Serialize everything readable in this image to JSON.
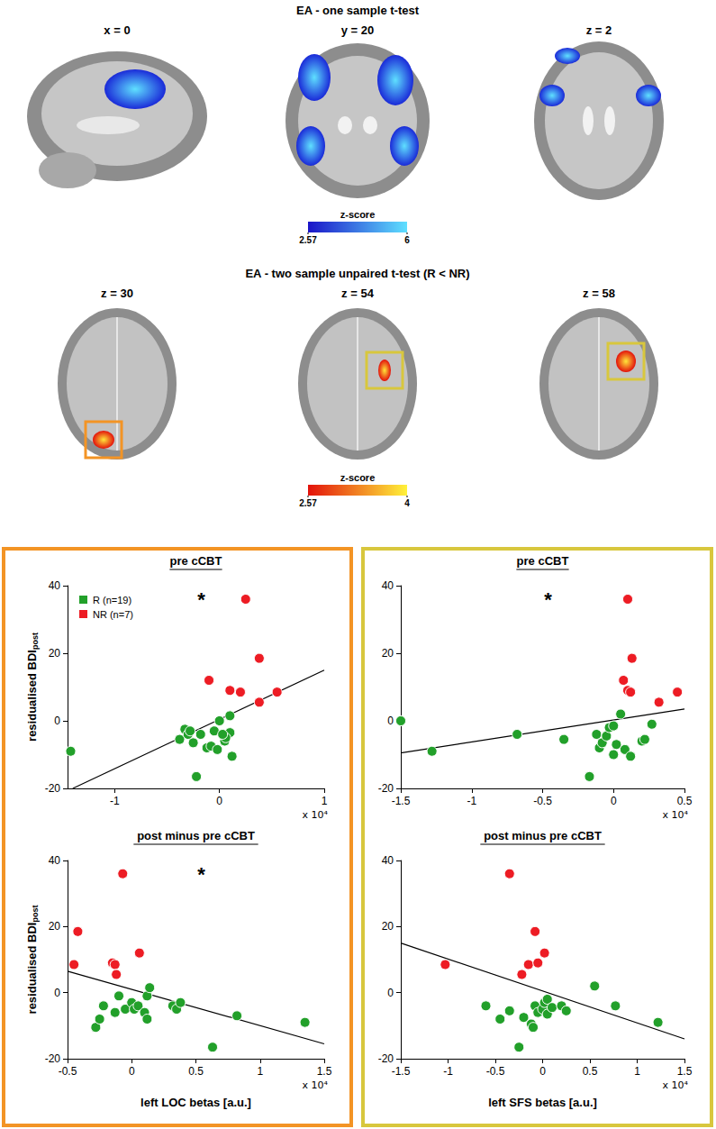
{
  "panels": [
    {
      "title": "EA - one sample t-test",
      "slices": [
        "x = 0",
        "y = 20",
        "z = 2"
      ],
      "colorbar": {
        "label": "z-score",
        "range": [
          2.57,
          6
        ],
        "ticks": [
          2.57,
          6
        ]
      }
    },
    {
      "title": "EA - two sample unpaired t-test (R < NR)",
      "slices": [
        "z = 30",
        "z = 54",
        "z = 58"
      ],
      "colorbar": {
        "label": "z-score",
        "range": [
          2.57,
          4
        ],
        "ticks": [
          2.57,
          4
        ]
      }
    }
  ],
  "chart_data": [
    {
      "type": "scatter",
      "title": "pre cCBT",
      "annotation": "*",
      "y_label": "residualised BDI",
      "y_label_subscript": "post",
      "x_scale_label": "x 10⁴",
      "xlim": [
        -1.45,
        1
      ],
      "xticks": [
        -1,
        0,
        1
      ],
      "ylim": [
        -20,
        40
      ],
      "yticks": [
        -20,
        0,
        20,
        40
      ],
      "legend": "upper left",
      "grid": false,
      "series": [
        {
          "name": "R (n=19)",
          "color": "#22a02a",
          "x": [
            -1.42,
            -0.22,
            -0.38,
            -0.33,
            -0.3,
            -0.25,
            -0.18,
            -0.12,
            -0.08,
            -0.05,
            0.0,
            0.05,
            0.1,
            0.1,
            0.12,
            -0.02,
            0.06,
            -0.28,
            0.03
          ],
          "values": [
            -9,
            -16.5,
            -5.5,
            -2.5,
            -4,
            -6.5,
            -4,
            -8,
            -7.5,
            -3,
            0,
            -6,
            1.5,
            -3.5,
            -10.5,
            -8.5,
            -5,
            -3,
            -4
          ]
        },
        {
          "name": "NR (n=7)",
          "color": "#ed1c24",
          "x": [
            -0.1,
            0.1,
            0.2,
            0.25,
            0.38,
            0.38,
            0.55
          ],
          "values": [
            12,
            9,
            8.5,
            36,
            18.5,
            5.5,
            8.5
          ]
        }
      ],
      "fit": {
        "x": [
          -1.4,
          1
        ],
        "values": [
          -20,
          15
        ]
      }
    },
    {
      "type": "scatter",
      "title": "pre cCBT",
      "annotation": "*",
      "x_scale_label": "x 10⁴",
      "xlim": [
        -1.5,
        0.5
      ],
      "xticks": [
        -1.5,
        -1,
        -0.5,
        0,
        0.5
      ],
      "ylim": [
        -20,
        40
      ],
      "yticks": [
        -20,
        0,
        20,
        40
      ],
      "grid": false,
      "series": [
        {
          "name": "R (n=19)",
          "color": "#22a02a",
          "x": [
            -1.5,
            -1.28,
            -0.68,
            -0.35,
            -0.17,
            -0.12,
            -0.1,
            -0.08,
            -0.05,
            -0.03,
            0.0,
            0.0,
            0.05,
            0.02,
            0.08,
            0.12,
            0.2,
            0.22,
            0.27
          ],
          "values": [
            0,
            -9,
            -4,
            -5.5,
            -16.5,
            -4,
            -8,
            -6.5,
            -4.5,
            -2,
            -1.5,
            -10,
            2,
            -7,
            -8.5,
            -10.5,
            -6,
            -5.5,
            -1
          ]
        },
        {
          "name": "NR (n=7)",
          "color": "#ed1c24",
          "x": [
            0.07,
            0.1,
            0.1,
            0.12,
            0.13,
            0.32,
            0.45
          ],
          "values": [
            12,
            36,
            9,
            8.5,
            18.5,
            5.5,
            8.5
          ]
        }
      ],
      "fit": {
        "x": [
          -1.5,
          0.5
        ],
        "values": [
          -9.5,
          3.5
        ]
      }
    },
    {
      "type": "scatter",
      "title": "post minus pre cCBT",
      "annotation": "*",
      "y_label": "residualised BDI",
      "y_label_subscript": "post",
      "x_label": "left LOC betas [a.u.]",
      "x_scale_label": "x 10⁴",
      "xlim": [
        -0.5,
        1.5
      ],
      "xticks": [
        -0.5,
        0,
        0.5,
        1,
        1.5
      ],
      "ylim": [
        -20,
        40
      ],
      "yticks": [
        -20,
        0,
        20,
        40
      ],
      "grid": false,
      "series": [
        {
          "name": "R (n=19)",
          "color": "#22a02a",
          "x": [
            -0.28,
            -0.25,
            -0.22,
            -0.13,
            -0.1,
            -0.05,
            0.0,
            0.02,
            0.05,
            0.1,
            0.12,
            0.12,
            0.14,
            0.32,
            0.35,
            0.38,
            0.63,
            0.82,
            1.35
          ],
          "values": [
            -10.5,
            -8,
            -4,
            -6,
            -1,
            -5,
            -3,
            -5,
            -4,
            -6,
            -8,
            -1,
            1.5,
            -4,
            -5,
            -3,
            -16.5,
            -7,
            -9
          ]
        },
        {
          "name": "NR (n=7)",
          "color": "#ed1c24",
          "x": [
            -0.45,
            -0.42,
            -0.15,
            -0.13,
            -0.12,
            -0.07,
            0.06
          ],
          "values": [
            8.5,
            18.5,
            9,
            8.5,
            5.5,
            36,
            12
          ]
        }
      ],
      "fit": {
        "x": [
          -0.5,
          1.5
        ],
        "values": [
          6.5,
          -15.5
        ]
      }
    },
    {
      "type": "scatter",
      "title": "post minus pre cCBT",
      "x_label": "left SFS betas [a.u.]",
      "x_scale_label": "x 10⁴",
      "xlim": [
        -1.5,
        1.5
      ],
      "xticks": [
        -1.5,
        -1,
        -0.5,
        0,
        0.5,
        1,
        1.5
      ],
      "ylim": [
        -20,
        40
      ],
      "yticks": [
        -20,
        0,
        20,
        40
      ],
      "grid": false,
      "series": [
        {
          "name": "R (n=19)",
          "color": "#22a02a",
          "x": [
            -0.6,
            -0.45,
            -0.35,
            -0.25,
            -0.2,
            -0.12,
            -0.1,
            -0.08,
            -0.05,
            0.0,
            0.02,
            0.05,
            0.05,
            0.1,
            0.2,
            0.25,
            0.55,
            0.77,
            1.22
          ],
          "values": [
            -4,
            -8,
            -5.5,
            -16.5,
            -7.5,
            -9.5,
            -10.5,
            -4,
            -6,
            -5,
            -3,
            -2,
            -6.5,
            -4.5,
            -4,
            -5.5,
            2,
            -4,
            -9
          ]
        },
        {
          "name": "NR (n=7)",
          "color": "#ed1c24",
          "x": [
            -1.03,
            -0.35,
            -0.22,
            -0.15,
            -0.08,
            -0.05,
            0.02
          ],
          "values": [
            8.5,
            36,
            5.5,
            8.5,
            18.5,
            9,
            12
          ]
        }
      ],
      "fit": {
        "x": [
          -1.5,
          1.5
        ],
        "values": [
          15,
          -14
        ]
      }
    }
  ]
}
